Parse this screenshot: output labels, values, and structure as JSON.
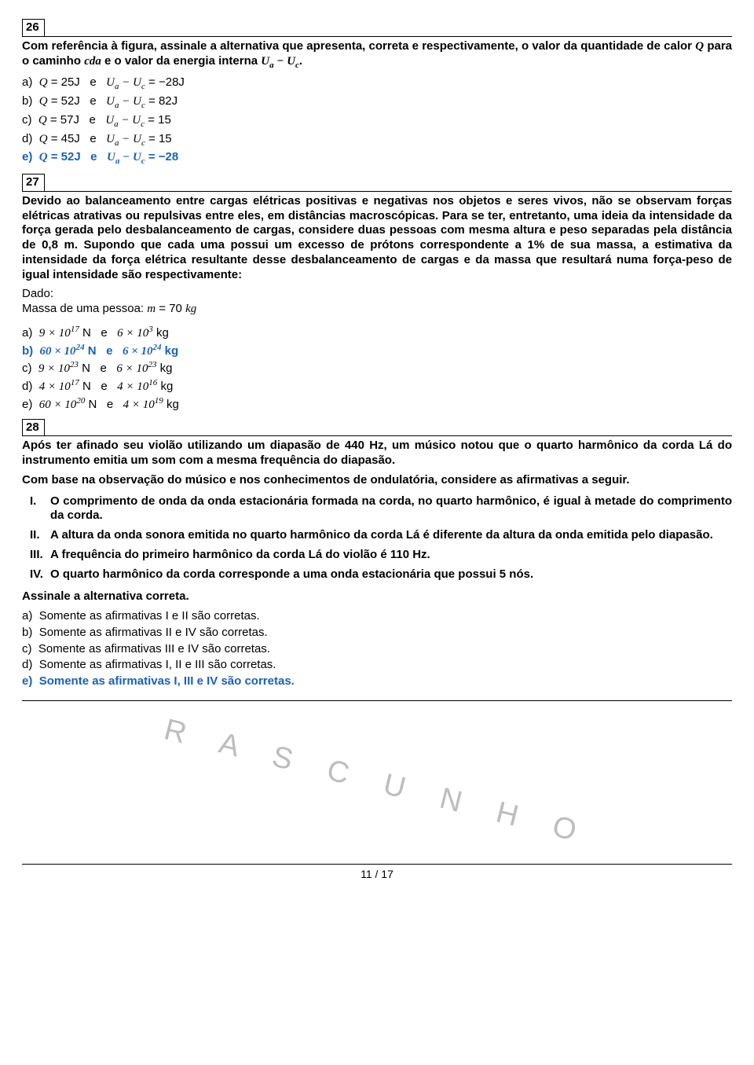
{
  "q26": {
    "number": "26",
    "prompt_a": "Com referência à figura, assinale a alternativa que apresenta, correta e respectivamente, o valor da quantidade de calor ",
    "prompt_b": " para o caminho ",
    "prompt_c": " e o valor da energia interna ",
    "opts": {
      "a": "Q = 25J   e   U_a − U_c = −28J",
      "b": "Q = 52J   e   U_a − U_c = 82J",
      "c": "Q = 57J   e   U_a − U_c = 15",
      "d": "Q = 45J   e   U_a − U_c = 15",
      "e": "Q = 52J   e   U_a − U_c = −28"
    }
  },
  "q27": {
    "number": "27",
    "prompt": "Devido ao balanceamento entre cargas elétricas positivas e negativas nos objetos e seres vivos, não se observam forças elétricas atrativas ou repulsivas entre eles, em distâncias macroscópicas. Para se ter, entretanto, uma ideia da intensidade da força gerada pelo desbalanceamento de cargas, considere duas pessoas com mesma altura e peso separadas pela distância de 0,8 m. Supondo que cada uma possui um excesso de prótons correspondente a 1% de sua massa, a estimativa da intensidade da força elétrica resultante desse desbalanceamento de cargas e da massa que resultará numa força-peso de igual intensidade são respectivamente:",
    "dado_label": "Dado:",
    "dado_mass": "Massa de uma pessoa: m = 70 kg",
    "opts": {
      "a": {
        "n1": "9",
        "e1": "17",
        "n2": "6",
        "e2": "3"
      },
      "b": {
        "n1": "60",
        "e1": "24",
        "n2": "6",
        "e2": "24"
      },
      "c": {
        "n1": "9",
        "e1": "23",
        "n2": "6",
        "e2": "23"
      },
      "d": {
        "n1": "4",
        "e1": "17",
        "n2": "4",
        "e2": "16"
      },
      "e": {
        "n1": "60",
        "e1": "20",
        "n2": "4",
        "e2": "19"
      }
    }
  },
  "q28": {
    "number": "28",
    "prompt1": "Após ter afinado seu violão utilizando um diapasão de 440 Hz, um músico notou que o quarto harmônico da corda Lá do instrumento emitia um som com a mesma frequência do diapasão.",
    "prompt2": "Com base na observação do músico e nos conhecimentos de ondulatória, considere as afirmativas a seguir.",
    "i1": "O comprimento de onda da onda estacionária formada na corda, no quarto harmônico, é igual à metade do comprimento da corda.",
    "i2": "A altura da onda sonora emitida no quarto harmônico da corda Lá é diferente da altura da onda emitida pelo diapasão.",
    "i3": "A frequência do primeiro harmônico da corda Lá do violão é 110 Hz.",
    "i4": "O quarto harmônico da corda corresponde a uma onda estacionária que possui 5 nós.",
    "assinale": "Assinale a alternativa correta.",
    "opts": {
      "a": "Somente as afirmativas I e II são corretas.",
      "b": "Somente as afirmativas II e IV são corretas.",
      "c": "Somente as afirmativas III e IV são corretas.",
      "d": "Somente as afirmativas I, II e III são corretas.",
      "e": "Somente as afirmativas I, III e IV são corretas."
    }
  },
  "rascunho": "R A S C U N H O",
  "pagenum": "11 / 17",
  "highlight_color": "#1a61b8"
}
